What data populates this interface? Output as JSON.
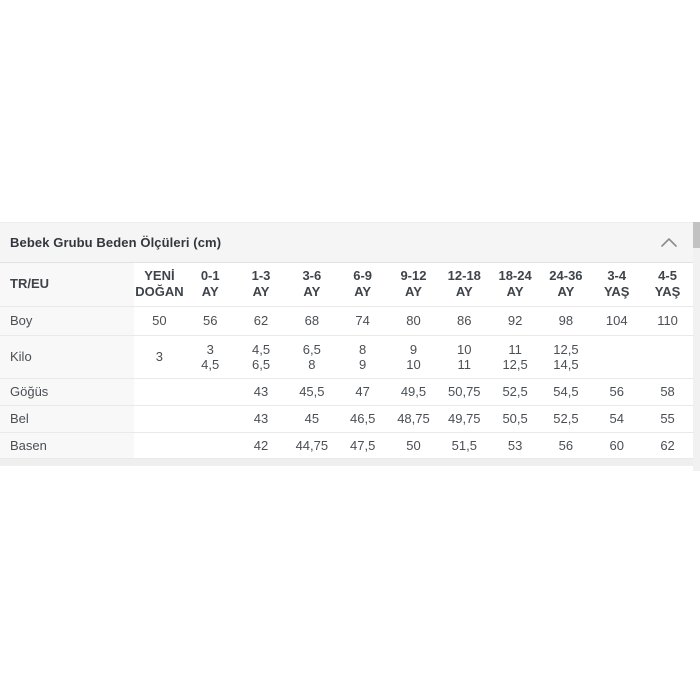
{
  "panel": {
    "title": "Bebek Grubu Beden Ölçüleri (cm)",
    "collapse_icon": "chevron-up-icon",
    "header_bg": "#f5f5f5",
    "title_color": "#33373d",
    "chevron_color": "#8c8c8c"
  },
  "size_table": {
    "corner_header": "TR/EU",
    "column_headers": [
      [
        "YENİ",
        "DOĞAN"
      ],
      [
        "0-1",
        "AY"
      ],
      [
        "1-3",
        "AY"
      ],
      [
        "3-6",
        "AY"
      ],
      [
        "6-9",
        "AY"
      ],
      [
        "9-12",
        "AY"
      ],
      [
        "12-18",
        "AY"
      ],
      [
        "18-24",
        "AY"
      ],
      [
        "24-36",
        "AY"
      ],
      [
        "3-4",
        "YAŞ"
      ],
      [
        "4-5",
        "YAŞ"
      ]
    ],
    "rows": [
      {
        "label": "Boy",
        "cells": [
          [
            "50"
          ],
          [
            "56"
          ],
          [
            "62"
          ],
          [
            "68"
          ],
          [
            "74"
          ],
          [
            "80"
          ],
          [
            "86"
          ],
          [
            "92"
          ],
          [
            "98"
          ],
          [
            "104"
          ],
          [
            "110"
          ]
        ]
      },
      {
        "label": "Kilo",
        "cells": [
          [
            "3"
          ],
          [
            "3",
            "4,5"
          ],
          [
            "4,5",
            "6,5"
          ],
          [
            "6,5",
            "8"
          ],
          [
            "8",
            "9"
          ],
          [
            "9",
            "10"
          ],
          [
            "10",
            "11"
          ],
          [
            "11",
            "12,5"
          ],
          [
            "12,5",
            "14,5"
          ],
          [],
          []
        ]
      },
      {
        "label": "Göğüs",
        "cells": [
          [],
          [],
          [
            "43"
          ],
          [
            "45,5"
          ],
          [
            "47"
          ],
          [
            "49,5"
          ],
          [
            "50,75"
          ],
          [
            "52,5"
          ],
          [
            "54,5"
          ],
          [
            "56"
          ],
          [
            "58"
          ]
        ]
      },
      {
        "label": "Bel",
        "cells": [
          [],
          [],
          [
            "43"
          ],
          [
            "45"
          ],
          [
            "46,5"
          ],
          [
            "48,75"
          ],
          [
            "49,75"
          ],
          [
            "50,5"
          ],
          [
            "52,5"
          ],
          [
            "54"
          ],
          [
            "55"
          ]
        ]
      },
      {
        "label": "Basen",
        "cells": [
          [],
          [],
          [
            "42"
          ],
          [
            "44,75"
          ],
          [
            "47,5"
          ],
          [
            "50"
          ],
          [
            "51,5"
          ],
          [
            "53"
          ],
          [
            "56"
          ],
          [
            "60"
          ],
          [
            "62"
          ]
        ]
      }
    ]
  },
  "colors": {
    "header_text": "#3f444a",
    "cell_text": "#4a4f55",
    "label_col_bg": "#f8f8f8",
    "row_border": "#e9e9e9",
    "bottom_strip": "#efefef",
    "scrollbar_track": "#f1f1f1",
    "scrollbar_thumb": "#c2c2c2"
  }
}
